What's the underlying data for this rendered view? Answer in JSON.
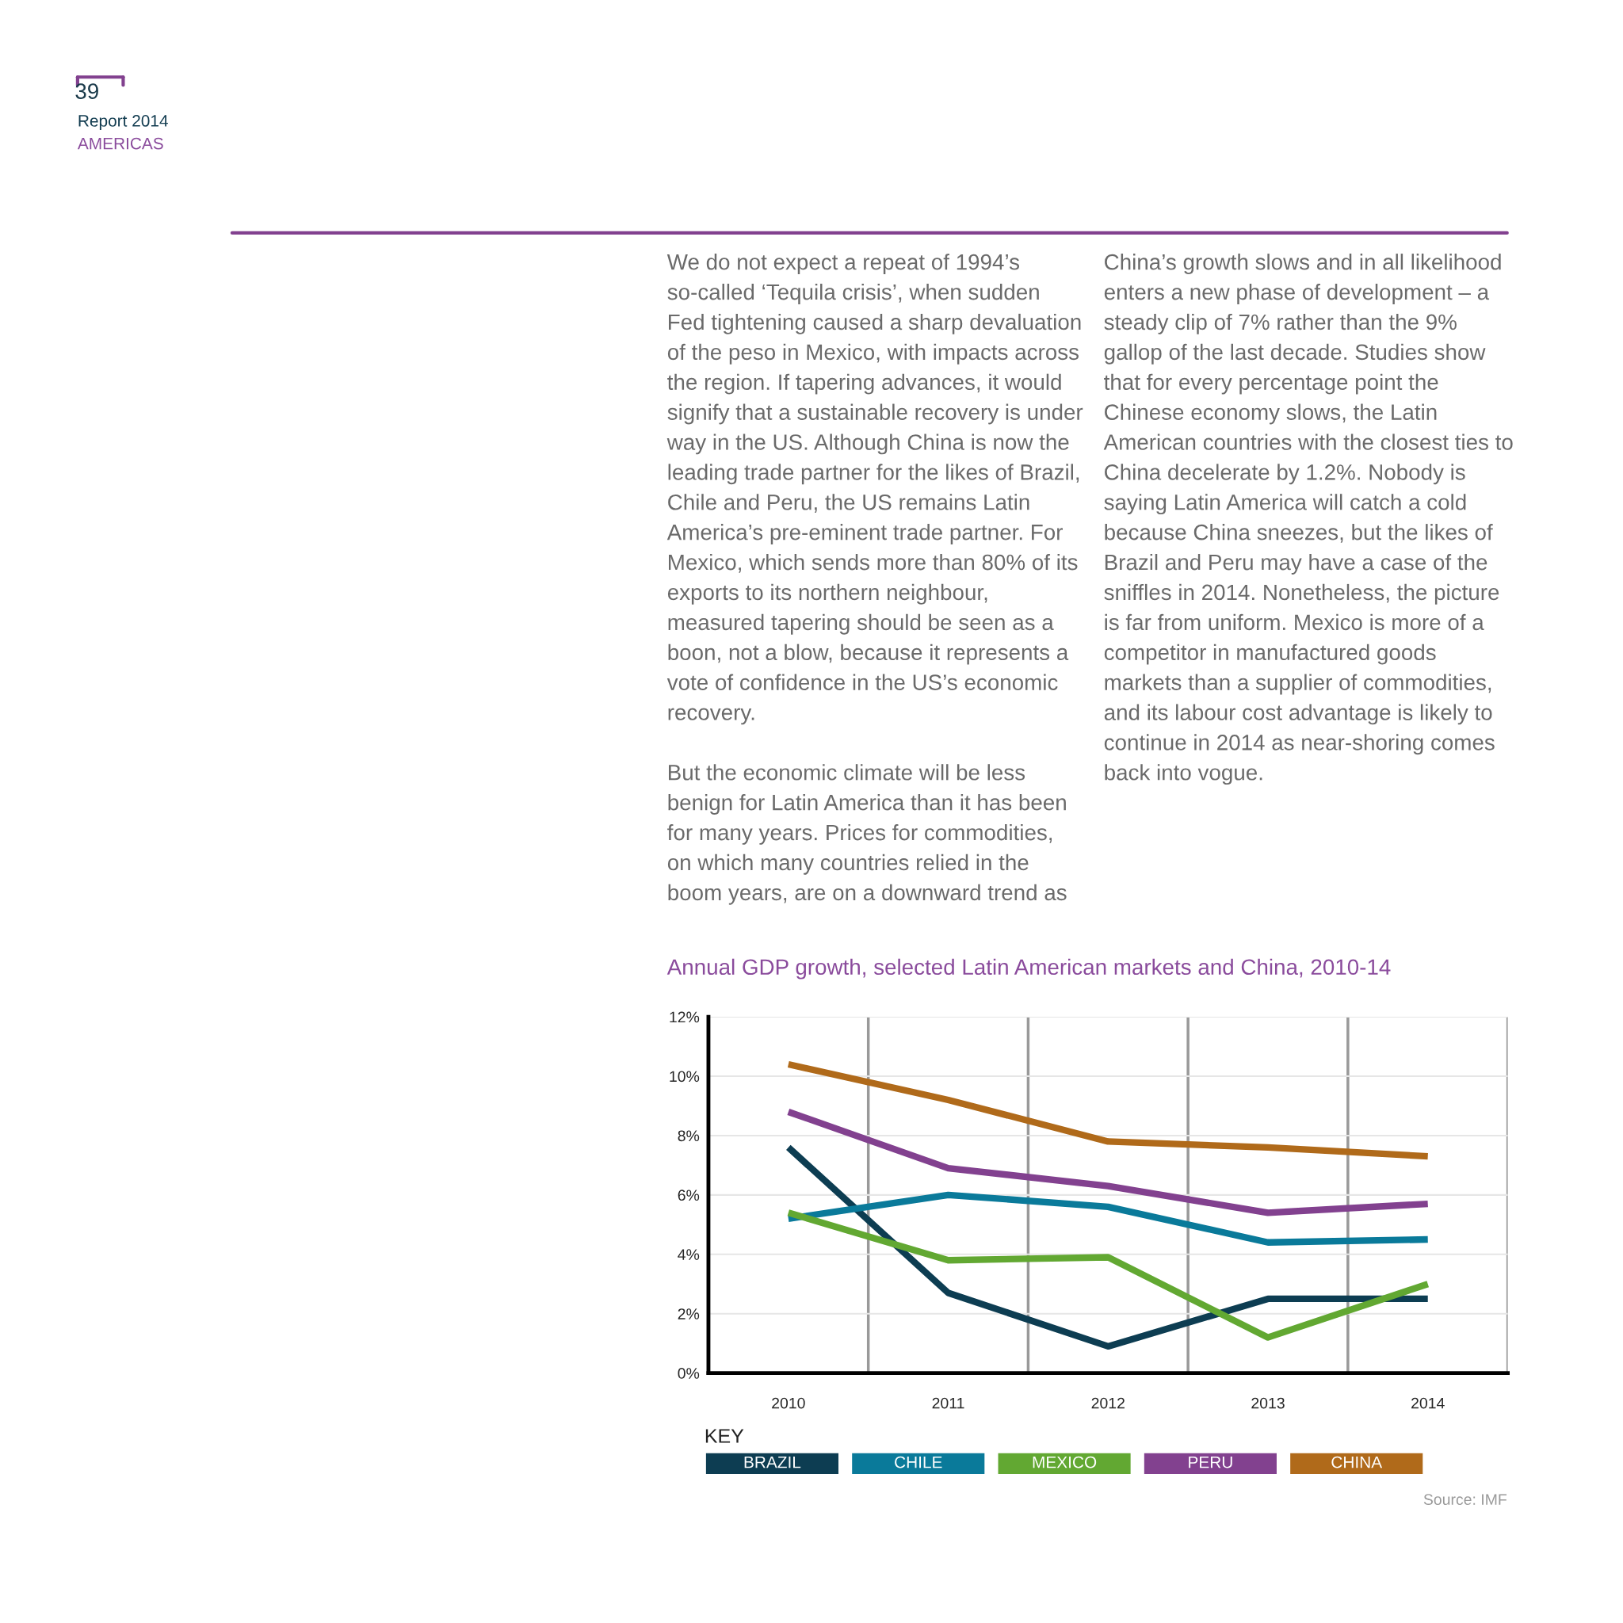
{
  "chart_data": {
    "type": "line",
    "title": "Annual GDP growth, selected Latin American markets and China, 2010-14",
    "categories": [
      "2010",
      "2011",
      "2012",
      "2013",
      "2014"
    ],
    "series": [
      {
        "name": "BRAZIL",
        "color": "#0d3d52",
        "values": [
          7.6,
          2.7,
          0.9,
          2.5,
          2.5
        ]
      },
      {
        "name": "CHILE",
        "color": "#0a7a9a",
        "values": [
          5.2,
          6.0,
          5.6,
          4.4,
          4.5
        ]
      },
      {
        "name": "MEXICO",
        "color": "#62a832",
        "values": [
          5.4,
          3.8,
          3.9,
          1.2,
          3.0
        ]
      },
      {
        "name": "PERU",
        "color": "#82418f",
        "values": [
          8.8,
          6.9,
          6.3,
          5.4,
          5.7
        ]
      },
      {
        "name": "CHINA",
        "color": "#b06a1a",
        "values": [
          10.4,
          9.2,
          7.8,
          7.6,
          7.3
        ]
      }
    ],
    "ylim": [
      0,
      12
    ],
    "yticks": [
      {
        "value": 0,
        "label": "0%"
      },
      {
        "value": 2,
        "label": "2%"
      },
      {
        "value": 4,
        "label": "4%"
      },
      {
        "value": 6,
        "label": "6%"
      },
      {
        "value": 8,
        "label": "8%"
      },
      {
        "value": 10,
        "label": "10%"
      },
      {
        "value": 12,
        "label": "12%"
      }
    ],
    "grid": true,
    "legend": "bottom",
    "legend_title": "KEY",
    "line_style": "solid",
    "marker": "none",
    "annotations": [
      "39",
      "Report 2014",
      "AMERICAS",
      "We do not expect a repeat of 1994’s so-called ‘Tequila crisis’, when sudden Fed tightening caused a sharp devaluation of the peso in Mexico, with impacts across the region. If tapering advances, it would signify that a sustainable recovery is under way in the US. Although China is now the leading trade partner for the likes of Brazil, Chile and Peru, the US remains Latin America’s pre-eminent trade partner. For Mexico, which sends more than 80% of its exports to its northern neighbour, measured tapering should be seen as a boon, not a blow, because it represents a vote of confidence in the US’s economic recovery.",
      "But the economic climate will be less benign for Latin America than it has been for many years. Prices for commodities, on which many countries relied in the boom years, are on a downward trend as China’s growth slows and in all likelihood enters a new phase of development – a steady clip of 7% rather than the 9% gallop of the last decade. Studies show that for every percentage point the Chinese economy slows, the Latin American countries with the closest ties to China decelerate by 1.2%. Nobody is saying Latin America will catch a cold because China sneezes, but the likes of Brazil and Peru may have a case of the sniffles in 2014. Nonetheless, the picture is far from uniform. Mexico is more of a competitor in manufactured goods markets than a supplier of commodities, and its labour cost advantage is likely to continue in 2014 as near-shoring comes back into vogue.",
      "Source: IMF"
    ]
  }
}
